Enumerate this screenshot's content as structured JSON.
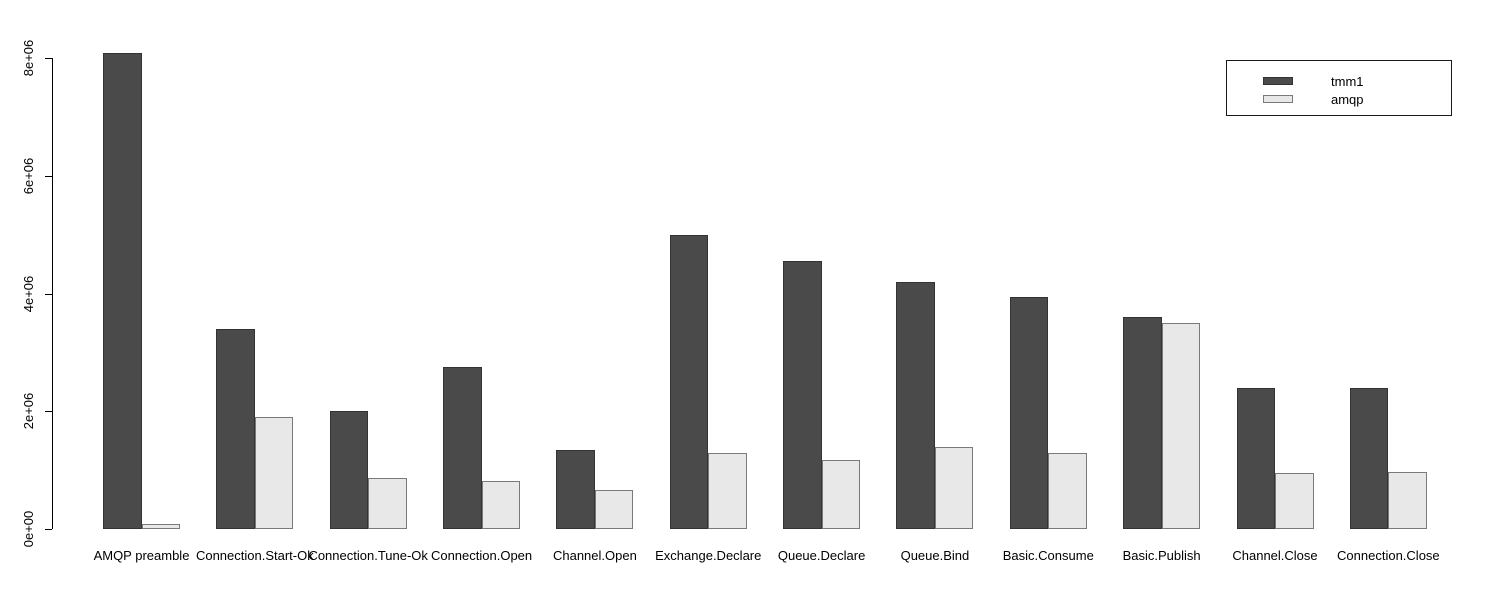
{
  "chart_data": {
    "type": "bar",
    "title": "",
    "xlabel": "",
    "ylabel": "",
    "categories": [
      "AMQP preamble",
      "Connection.Start-Ok",
      "Connection.Tune-Ok",
      "Connection.Open",
      "Channel.Open",
      "Exchange.Declare",
      "Queue.Declare",
      "Queue.Bind",
      "Basic.Consume",
      "Basic.Publish",
      "Channel.Close",
      "Connection.Close"
    ],
    "series": [
      {
        "name": "tmm1",
        "color": "#4a4a4a",
        "border_color": "#333333",
        "values": [
          8100000,
          3400000,
          2000000,
          2750000,
          1350000,
          5000000,
          4550000,
          4200000,
          3950000,
          3600000,
          2400000,
          2400000
        ]
      },
      {
        "name": "amqp",
        "color": "#e8e8e8",
        "border_color": "#7a7a7a",
        "values": [
          80000,
          1900000,
          870000,
          820000,
          670000,
          1300000,
          1180000,
          1390000,
          1300000,
          3500000,
          960000,
          970000
        ]
      }
    ],
    "ylim": [
      0,
      8000000
    ],
    "yticks": {
      "values": [
        0,
        2000000,
        4000000,
        6000000,
        8000000
      ],
      "labels": [
        "0e+00",
        "2e+06",
        "4e+06",
        "6e+06",
        "8e+06"
      ]
    },
    "legend": {
      "position": "top-right",
      "entries": [
        "tmm1",
        "amqp"
      ]
    },
    "grid": false,
    "background": "#ffffff"
  }
}
